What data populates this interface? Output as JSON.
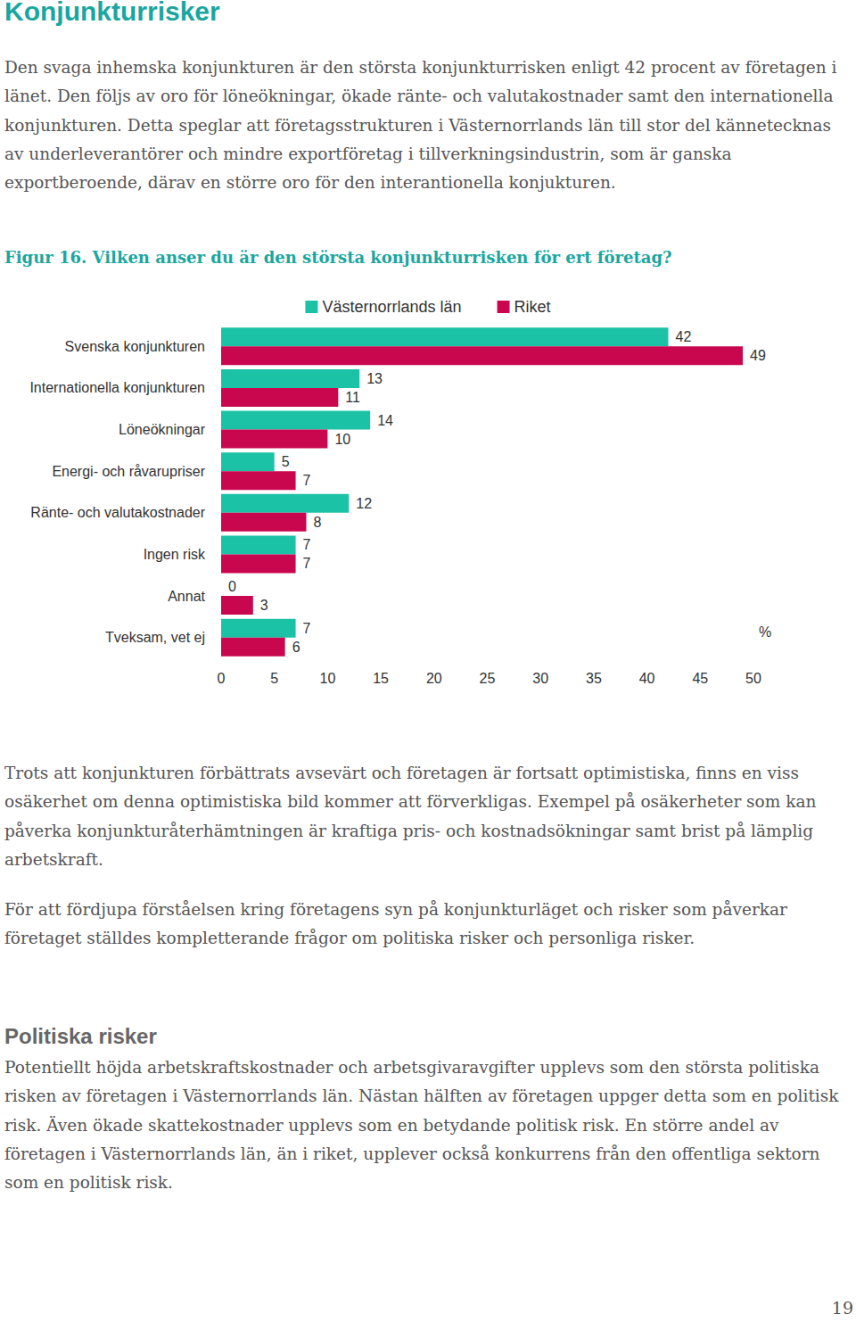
{
  "document": {
    "heading": "Konjunkturrisker",
    "intro": "Den svaga inhemska konjunkturen är den största konjunkturrisken enligt 42 procent av företagen i länet. Den följs av oro för löneökningar, ökade ränte- och valutakostnader samt den internationella konjunkturen. Detta speglar att företagsstrukturen i Västernorrlands län till stor del kännetecknas av underleverantörer och mindre exportföretag i tillverkningsindustrin, som är ganska exportberoende, därav en större oro för den interantionella konjukturen.",
    "figure_caption": "Figur 16. Vilken anser du är den största konjunkturrisken för ert företag?",
    "after_paragraphs": [
      "Trots att konjunkturen förbättrats avsevärt och företagen är fortsatt optimistiska, finns en viss osäkerhet om denna optimistiska bild kommer att förverkligas. Exempel på osäkerheter som kan påverka konjunkturåterhämtningen är kraftiga pris- och kostnadsökningar samt brist på lämplig arbetskraft.",
      "För att fördjupa förståelsen kring företagens syn på konjunkturläget och risker som påverkar företaget ställdes kompletterande frågor om politiska risker och personliga risker."
    ],
    "section_heading": "Politiska risker",
    "section_paragraph": "Potentiellt höjda arbetskraftskostnader och arbetsgivaravgifter upplevs som den största politiska risken av företagen i Västernorrlands län. Nästan hälften av företagen uppger detta som en politisk risk. Även ökade skattekostnader upplevs som en betydande politisk risk. En större andel av företagen i Västernorrlands län, än i riket, upplever också konkurrens från den offentliga sektorn som en politisk risk.",
    "page_number": "19"
  },
  "chart_data": {
    "type": "bar",
    "orientation": "horizontal",
    "categories": [
      "Svenska konjunkturen",
      "Internationella konjunkturen",
      "Löneökningar",
      "Energi- och råvarupriser",
      "Ränte- och valutakostnader",
      "Ingen risk",
      "Annat",
      "Tveksam, vet ej"
    ],
    "series": [
      {
        "name": "Västernorrlands län",
        "color": "#1cc2a6",
        "values": [
          42,
          13,
          14,
          5,
          12,
          7,
          0,
          7
        ]
      },
      {
        "name": "Riket",
        "color": "#c8074e",
        "values": [
          49,
          11,
          10,
          7,
          8,
          7,
          3,
          6
        ]
      }
    ],
    "x_label": "%",
    "xlim": [
      0,
      50
    ],
    "xticks": [
      0,
      5,
      10,
      15,
      20,
      25,
      30,
      35,
      40,
      45,
      50
    ],
    "grid": false,
    "legend": "top",
    "data_labels": true
  }
}
